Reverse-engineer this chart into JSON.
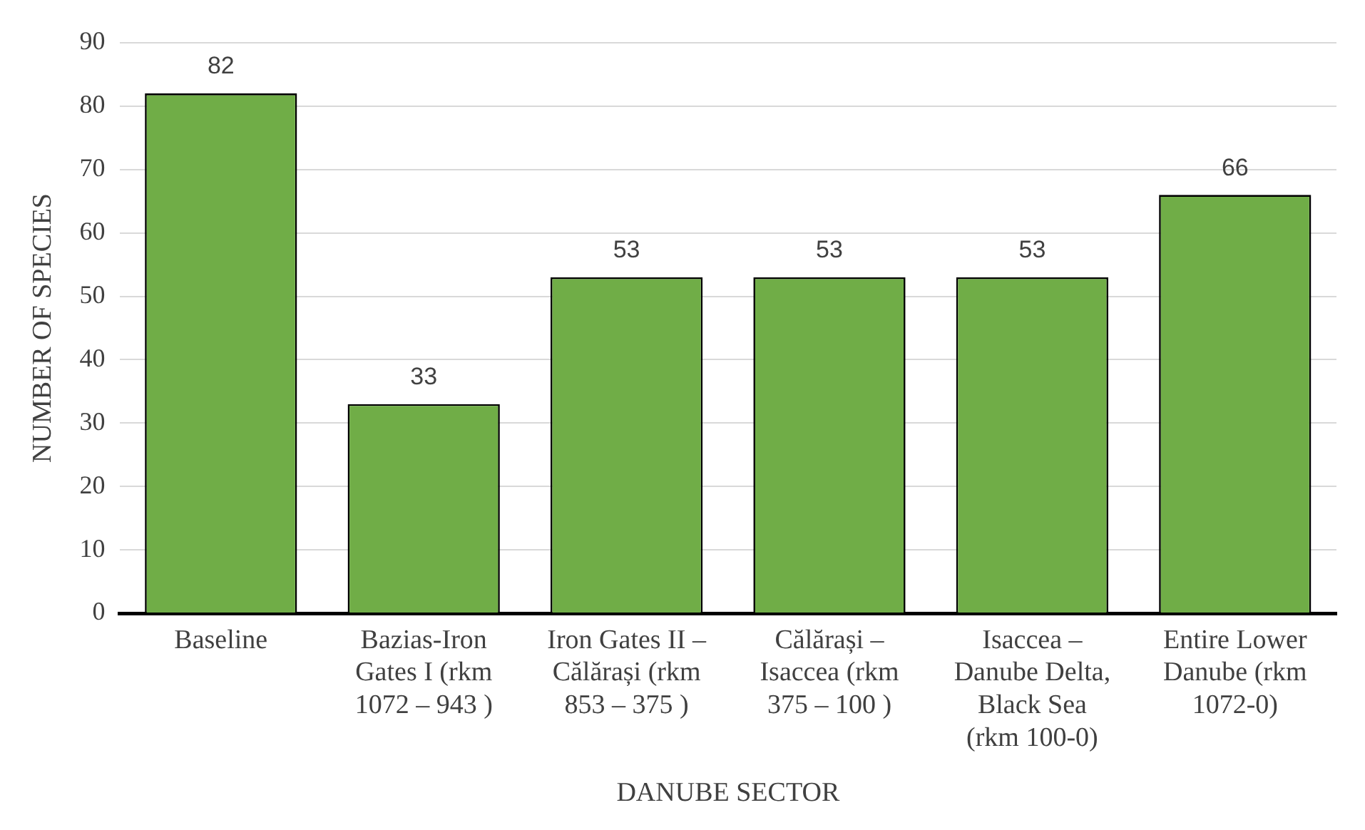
{
  "chart_data": {
    "type": "bar",
    "xlabel": "DANUBE SECTOR",
    "ylabel": "NUMBER OF SPECIES",
    "categories": [
      "Baseline",
      "Bazias-Iron Gates I (rkm 1072 – 943 )",
      "Iron Gates II – Călărași (rkm 853 – 375 )",
      "Călărași – Isaccea (rkm 375 – 100 )",
      "Isaccea – Danube Delta, Black Sea (rkm 100-0)",
      "Entire Lower Danube (rkm 1072-0)"
    ],
    "values": [
      82,
      33,
      53,
      53,
      53,
      66
    ],
    "color": "#70ad47",
    "data_labels": true,
    "grid": "y",
    "legend": false,
    "ylim": [
      0,
      90
    ],
    "yticks": [
      0,
      10,
      20,
      30,
      40,
      50,
      60,
      70,
      80,
      90
    ]
  }
}
